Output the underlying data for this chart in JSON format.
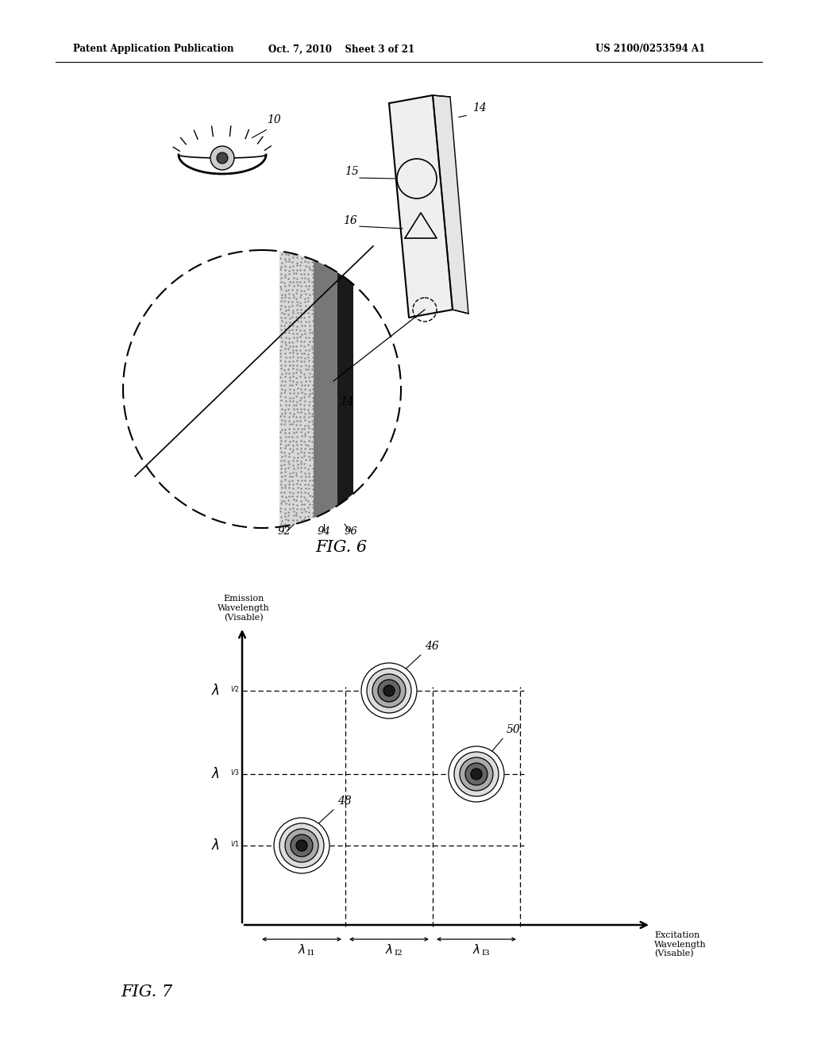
{
  "background_color": "#ffffff",
  "line_color": "#000000",
  "header_left": "Patent Application Publication",
  "header_center": "Oct. 7, 2010    Sheet 3 of 21",
  "header_right": "US 2100/0253594 A1",
  "fig6_label": "FIG. 6",
  "fig7_label": "FIG. 7"
}
